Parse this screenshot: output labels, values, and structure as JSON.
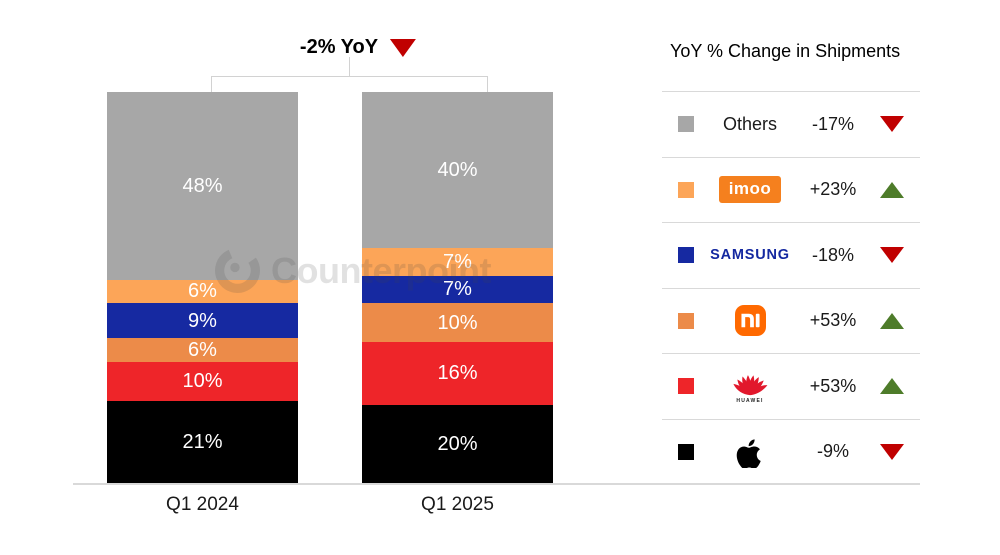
{
  "chart": {
    "yoy_label": "-2% YoY",
    "yoy_direction": "down",
    "watermark": "Counterpoint"
  },
  "chart_data": {
    "type": "bar",
    "stacked": true,
    "unit": "percent share of shipments",
    "categories": [
      "Q1 2024",
      "Q1 2025"
    ],
    "series_order": "top-to-bottom",
    "series": [
      {
        "name": "Others",
        "color": "#A7A7A7",
        "values": [
          48,
          40
        ]
      },
      {
        "name": "imoo",
        "color": "#FCA558",
        "values": [
          6,
          7
        ]
      },
      {
        "name": "Samsung",
        "color": "#1629A1",
        "values": [
          9,
          7
        ]
      },
      {
        "name": "Xiaomi",
        "color": "#EC8B49",
        "values": [
          6,
          10
        ]
      },
      {
        "name": "Huawei",
        "color": "#EE2529",
        "values": [
          10,
          16
        ]
      },
      {
        "name": "Apple",
        "color": "#000000",
        "values": [
          21,
          20
        ]
      }
    ],
    "title": "-2% YoY",
    "ylim": [
      0,
      100
    ],
    "legend_position": "right",
    "annotations": [
      "-2% YoY total change from Q1 2024 to Q1 2025"
    ]
  },
  "legend": {
    "title": "YoY % Change in Shipments",
    "rows": [
      {
        "brand": "Others",
        "logo": "text",
        "logo_text": "Others",
        "change": "-17%",
        "direction": "down",
        "swatch": "#A7A7A7"
      },
      {
        "brand": "imoo",
        "logo": "imoo",
        "logo_text": "imoo",
        "change": "+23%",
        "direction": "up",
        "swatch": "#FCA558"
      },
      {
        "brand": "Samsung",
        "logo": "samsung",
        "logo_text": "SAMSUNG",
        "change": "-18%",
        "direction": "down",
        "swatch": "#1629A1"
      },
      {
        "brand": "Xiaomi",
        "logo": "mi",
        "logo_text": "MI",
        "change": "+53%",
        "direction": "up",
        "swatch": "#EC8B49"
      },
      {
        "brand": "Huawei",
        "logo": "huawei",
        "logo_text": "HUAWEI",
        "change": "+53%",
        "direction": "up",
        "swatch": "#EE2529"
      },
      {
        "brand": "Apple",
        "logo": "apple",
        "logo_text": "",
        "change": "-9%",
        "direction": "down",
        "swatch": "#000000"
      }
    ]
  },
  "colors": {
    "up_triangle": "#4E7C2A",
    "down_triangle": "#C00000",
    "axis_line": "#D9D9D9",
    "bracket_line": "#D2D2D2",
    "imoo_logo_bg": "#F5801E",
    "samsung_logo_text": "#1428A0",
    "mi_logo_bg": "#FF6900",
    "huawei_logo_red": "#E2182C"
  }
}
